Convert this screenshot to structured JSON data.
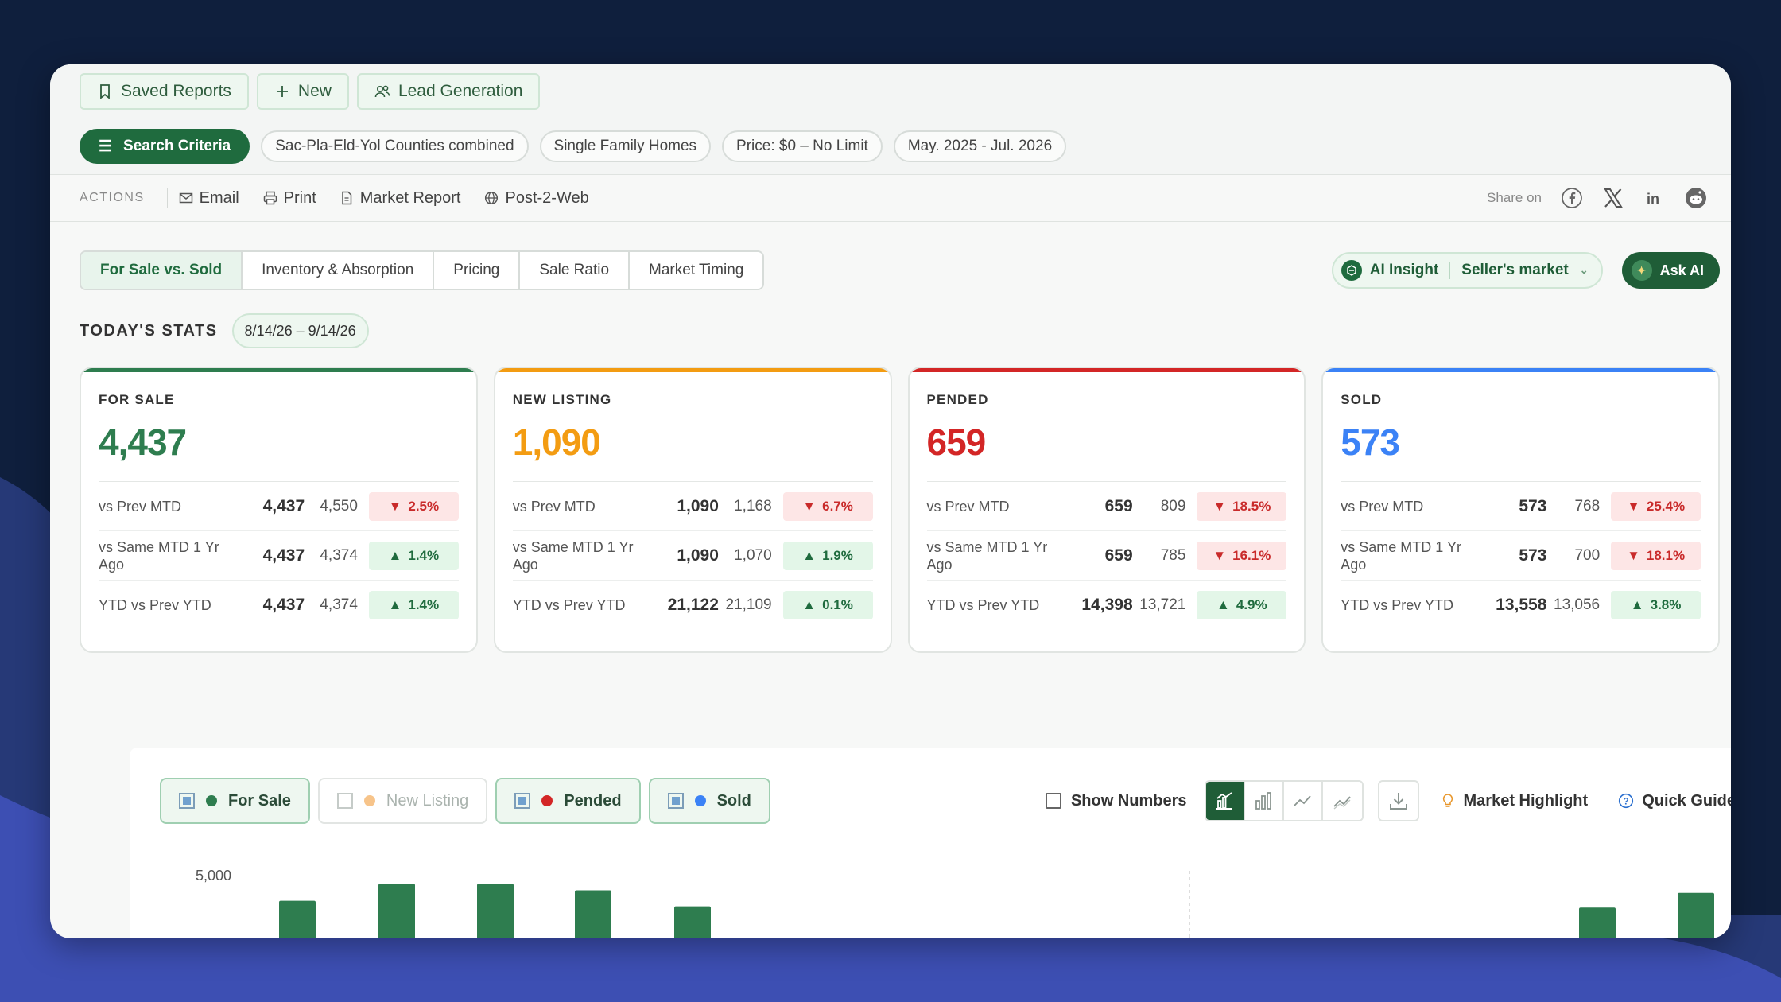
{
  "topbar": {
    "saved_reports": "Saved Reports",
    "new": "New",
    "lead_generation": "Lead Generation"
  },
  "criteria": {
    "main": "Search Criteria",
    "chips": [
      "Sac-Pla-Eld-Yol Counties combined",
      "Single Family Homes",
      "Price: $0 – No Limit",
      "May. 2025 - Jul. 2026"
    ]
  },
  "actions": {
    "label": "ACTIONS",
    "email": "Email",
    "print": "Print",
    "market_report": "Market Report",
    "post_2_web": "Post-2-Web",
    "share_on": "Share on",
    "social_icons": [
      "facebook-icon",
      "x-icon",
      "linkedin-icon",
      "reddit-icon"
    ]
  },
  "tabs": [
    "For Sale vs. Sold",
    "Inventory & Absorption",
    "Pricing",
    "Sale Ratio",
    "Market Timing"
  ],
  "active_tab": "For Sale vs. Sold",
  "ai": {
    "insight_label": "AI Insight",
    "insight_value": "Seller's market",
    "ask": "Ask AI"
  },
  "stats": {
    "title": "TODAY'S STATS",
    "range": "8/14/26 – 9/14/26",
    "cards": [
      {
        "label": "FOR SALE",
        "value": "4,437",
        "color": "#2e7d4f",
        "rows": [
          {
            "label": "vs Prev MTD",
            "cur": "4,437",
            "prev": "4,550",
            "change": "2.5%",
            "dir": "down"
          },
          {
            "label": "vs Same MTD 1 Yr Ago",
            "cur": "4,437",
            "prev": "4,374",
            "change": "1.4%",
            "dir": "up"
          },
          {
            "label": "YTD vs Prev YTD",
            "cur": "4,437",
            "prev": "4,374",
            "change": "1.4%",
            "dir": "up"
          }
        ]
      },
      {
        "label": "NEW LISTING",
        "value": "1,090",
        "color": "#f39c12",
        "rows": [
          {
            "label": "vs Prev MTD",
            "cur": "1,090",
            "prev": "1,168",
            "change": "6.7%",
            "dir": "down"
          },
          {
            "label": "vs Same MTD 1 Yr Ago",
            "cur": "1,090",
            "prev": "1,070",
            "change": "1.9%",
            "dir": "up"
          },
          {
            "label": "YTD vs Prev YTD",
            "cur": "21,122",
            "prev": "21,109",
            "change": "0.1%",
            "dir": "up"
          }
        ]
      },
      {
        "label": "PENDED",
        "value": "659",
        "color": "#d32626",
        "rows": [
          {
            "label": "vs Prev MTD",
            "cur": "659",
            "prev": "809",
            "change": "18.5%",
            "dir": "down"
          },
          {
            "label": "vs Same MTD 1 Yr Ago",
            "cur": "659",
            "prev": "785",
            "change": "16.1%",
            "dir": "down"
          },
          {
            "label": "YTD vs Prev YTD",
            "cur": "14,398",
            "prev": "13,721",
            "change": "4.9%",
            "dir": "up"
          }
        ]
      },
      {
        "label": "SOLD",
        "value": "573",
        "color": "#3b82f6",
        "rows": [
          {
            "label": "vs Prev MTD",
            "cur": "573",
            "prev": "768",
            "change": "25.4%",
            "dir": "down"
          },
          {
            "label": "vs Same MTD 1 Yr Ago",
            "cur": "573",
            "prev": "700",
            "change": "18.1%",
            "dir": "down"
          },
          {
            "label": "YTD vs Prev YTD",
            "cur": "13,558",
            "prev": "13,056",
            "change": "3.8%",
            "dir": "up"
          }
        ]
      }
    ]
  },
  "chart_controls": {
    "legend": [
      {
        "name": "For Sale",
        "color": "#2e7d4f",
        "checked": true
      },
      {
        "name": "New Listing",
        "color": "#f7c48a",
        "checked": false
      },
      {
        "name": "Pended",
        "color": "#d32626",
        "checked": true
      },
      {
        "name": "Sold",
        "color": "#3b82f6",
        "checked": true
      }
    ],
    "show_numbers": "Show Numbers",
    "market_highlight": "Market Highlight",
    "quick_guide": "Quick Guide"
  },
  "chart_data": {
    "type": "bar",
    "ytick": "5,000",
    "ylim": [
      0,
      5000
    ],
    "series": [
      {
        "name": "For Sale",
        "color": "#2e7d4f"
      }
    ],
    "visible_bars": [
      3980,
      4650,
      4650,
      4390,
      3760,
      3710,
      4290
    ]
  }
}
